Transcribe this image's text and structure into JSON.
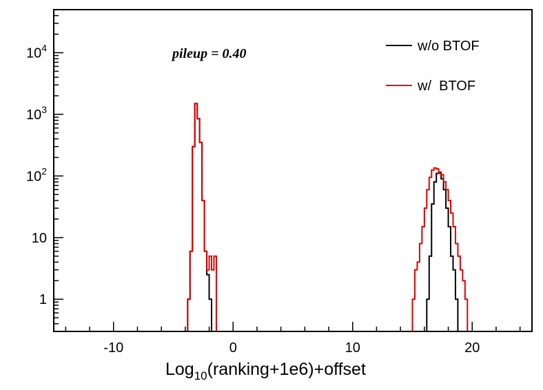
{
  "chart_data": {
    "type": "line",
    "style": "step-histogram",
    "title": "",
    "xlabel_main": "Log",
    "xlabel_sub": "10",
    "xlabel_rest": "(ranking+1e6)+offset",
    "ylabel": "",
    "xlim": [
      -15,
      25
    ],
    "ylim": [
      0.3,
      50000
    ],
    "yscale": "log",
    "grid": false,
    "legend_position": "top-right",
    "x_tick_labels": [
      "-10",
      "0",
      "10",
      "20"
    ],
    "y_tick_labels": [
      "1",
      "10",
      "10",
      "10",
      "10"
    ],
    "y_tick_exponents": [
      "",
      "",
      "2",
      "3",
      "4"
    ],
    "annotation": "pileup = 0.40",
    "colors": {
      "wo_btof": "#000000",
      "w_btof": "#e00000"
    },
    "legend": [
      {
        "name": "w/o BTOF",
        "color": "#000000"
      },
      {
        "name": "w/  BTOF",
        "color": "#e00000"
      }
    ],
    "series": [
      {
        "name": "w/o BTOF",
        "color": "#000000",
        "bin_edges": [
          -3.8,
          -3.6,
          -3.4,
          -3.2,
          -3.0,
          -2.8,
          -2.6,
          -2.4,
          -2.2,
          -2.0,
          -1.8,
          -1.6,
          -1.4,
          16.2,
          16.4,
          16.6,
          16.8,
          17.0,
          17.2,
          17.4,
          17.6,
          17.8,
          18.0,
          18.2,
          18.4,
          18.6,
          18.8,
          19.0,
          19.2
        ],
        "values": [
          1,
          6,
          300,
          1500,
          850,
          350,
          40,
          6,
          2.5,
          1,
          0.3,
          0.3,
          0.3,
          1,
          5,
          35,
          80,
          110,
          115,
          90,
          60,
          30,
          15,
          5,
          3,
          1,
          0.3,
          0.3
        ]
      },
      {
        "name": "w/ BTOF",
        "color": "#e00000",
        "bin_edges": [
          -4.0,
          -3.8,
          -3.6,
          -3.4,
          -3.2,
          -3.0,
          -2.8,
          -2.6,
          -2.4,
          -2.2,
          -2.0,
          -1.8,
          -1.6,
          -1.4,
          -1.2,
          15.0,
          15.2,
          15.4,
          15.6,
          15.8,
          16.0,
          16.2,
          16.4,
          16.6,
          16.8,
          17.0,
          17.2,
          17.4,
          17.6,
          17.8,
          18.0,
          18.2,
          18.4,
          18.6,
          18.8,
          19.0,
          19.2,
          19.4,
          19.6,
          19.8,
          20.0,
          20.2
        ],
        "values": [
          0.3,
          1,
          6,
          300,
          1500,
          850,
          350,
          40,
          6,
          3,
          5,
          3,
          5,
          0.3,
          0.3,
          1,
          3,
          4,
          8,
          15,
          30,
          60,
          95,
          125,
          135,
          130,
          110,
          105,
          80,
          60,
          40,
          25,
          15,
          8,
          5,
          3,
          2,
          1,
          0.3,
          0.3,
          0.3
        ]
      }
    ]
  }
}
